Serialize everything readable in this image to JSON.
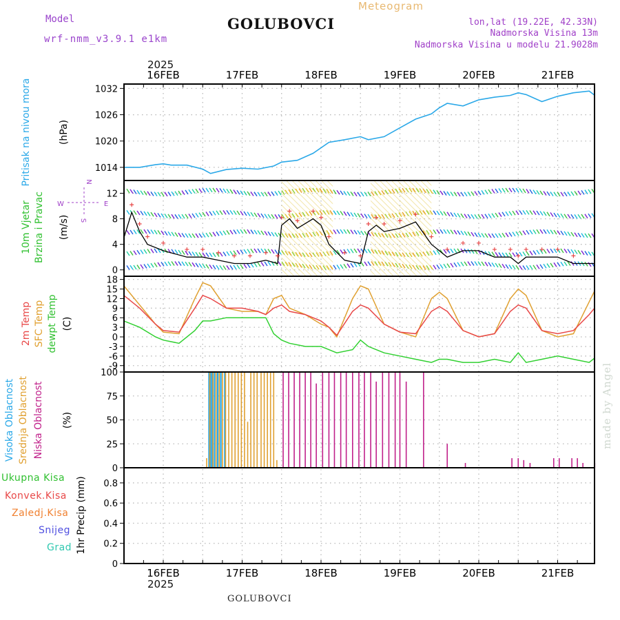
{
  "header": {
    "model_label": "Model",
    "model_name": "wrf-nmm_v3.9.1 e1km",
    "station": "GOLUBOVCI",
    "product": "Meteogram",
    "coords": "lon,lat (19.22E, 42.33N)",
    "elevation": "Nadmorska Visina 13m",
    "model_elevation": "Nadmorska Visina u modelu 21.9028m",
    "year_top": "2025",
    "year_bottom": "2025",
    "footer_station": "GOLUBOVCI",
    "watermark": "made by Angel"
  },
  "colors": {
    "pressure": "#2aa8e8",
    "temp2m": "#e84848",
    "sfc_temp": "#e0a030",
    "dewpt": "#30d030",
    "high_cloud": "#2aa8e8",
    "mid_cloud": "#e0a030",
    "low_cloud": "#c0208a",
    "wind_speed": "#000000",
    "gust": "#e84848",
    "total_precip": "#30c030",
    "conv_precip": "#e84848",
    "frozen_precip": "#f08030",
    "snow": "#5050e0",
    "hail": "#30c8b0"
  },
  "date_ticks": [
    "16FEB",
    "17FEB",
    "18FEB",
    "19FEB",
    "20FEB",
    "21FEB"
  ],
  "panels": {
    "pressure": {
      "label_blue": "Pritisak na nivou mora",
      "unit": "(hPa)",
      "yticks": [
        "1014",
        "1020",
        "1026",
        "1032"
      ]
    },
    "wind": {
      "label_green1": "10m Vjetar",
      "label_green2": "Brzina i Pravac",
      "unit": "(m/s)",
      "yticks": [
        "0",
        "4",
        "8",
        "12"
      ],
      "compass_n": "N",
      "compass_s": "S",
      "compass_e": "E",
      "compass_w": "W"
    },
    "temp": {
      "label_red": "2m Temp",
      "label_orange": "SFC Temp",
      "label_green": "dewpt Temp",
      "unit": "(C)",
      "yticks": [
        "-9",
        "-6",
        "-3",
        "0",
        "3",
        "6",
        "9",
        "12",
        "15",
        "18"
      ]
    },
    "cloud": {
      "label_blue": "Visoka Oblacnost",
      "label_orange": "Srednja Oblacnost",
      "label_magenta": "Niska Oblacnost",
      "unit": "(%)",
      "yticks": [
        "0",
        "25",
        "50",
        "75",
        "100"
      ]
    },
    "precip": {
      "unit": "1hr Precip (mm)",
      "yticks": [
        "0",
        "0.2",
        "0.4",
        "0.6",
        "0.8"
      ],
      "legend": [
        "Ukupna Kisa",
        "Konvek.Kisa",
        "Zaledj.Kisa",
        "Snijeg",
        "Grad"
      ]
    }
  },
  "chart_data": [
    {
      "type": "line",
      "name": "pressure",
      "x_unit": "days since 16FEB 00UTC",
      "ylim": [
        1011,
        1033
      ],
      "x": [
        -0.5,
        -0.3,
        -0.1,
        0.0,
        0.1,
        0.3,
        0.5,
        0.6,
        0.8,
        1.0,
        1.2,
        1.4,
        1.5,
        1.7,
        1.9,
        2.1,
        2.3,
        2.5,
        2.6,
        2.8,
        3.0,
        3.2,
        3.4,
        3.5,
        3.6,
        3.8,
        4.0,
        4.2,
        4.4,
        4.5,
        4.6,
        4.8,
        5.0,
        5.2,
        5.4,
        5.5
      ],
      "series": [
        {
          "values": [
            1014.0,
            1014.0,
            1014.6,
            1014.8,
            1014.5,
            1014.5,
            1013.6,
            1012.6,
            1013.5,
            1013.8,
            1013.6,
            1014.3,
            1015.2,
            1015.6,
            1017.2,
            1019.7,
            1020.3,
            1021.0,
            1020.3,
            1021.0,
            1023.0,
            1025.0,
            1026.2,
            1027.6,
            1028.6,
            1028.0,
            1029.4,
            1030.0,
            1030.4,
            1031.0,
            1030.6,
            1029.0,
            1030.2,
            1031.0,
            1031.4,
            1030.0
          ]
        }
      ]
    },
    {
      "type": "line",
      "name": "wind_speed",
      "ylim": [
        -1,
        14
      ],
      "x": [
        -0.5,
        -0.4,
        -0.3,
        -0.2,
        0.0,
        0.3,
        0.5,
        0.7,
        0.9,
        1.1,
        1.3,
        1.45,
        1.5,
        1.6,
        1.7,
        1.9,
        2.0,
        2.1,
        2.3,
        2.5,
        2.6,
        2.7,
        2.8,
        3.0,
        3.2,
        3.4,
        3.6,
        3.8,
        4.0,
        4.2,
        4.4,
        4.5,
        4.6,
        4.8,
        5.0,
        5.2,
        5.5
      ],
      "series": [
        {
          "name": "wind",
          "values": [
            5,
            9,
            6,
            4,
            3,
            2,
            2,
            1.5,
            1,
            1,
            1.5,
            1,
            7,
            8,
            6.5,
            8,
            7,
            4,
            1.5,
            1,
            6,
            7,
            6,
            6.5,
            7.5,
            4,
            2,
            3,
            3,
            2,
            2,
            1,
            2,
            2,
            2,
            1,
            1
          ]
        }
      ]
    },
    {
      "type": "line",
      "name": "temperature",
      "ylim": [
        -11,
        19
      ],
      "x": [
        -0.5,
        -0.3,
        -0.1,
        0.0,
        0.2,
        0.4,
        0.5,
        0.6,
        0.8,
        1.0,
        1.2,
        1.3,
        1.4,
        1.5,
        1.6,
        1.8,
        2.0,
        2.1,
        2.2,
        2.4,
        2.5,
        2.6,
        2.8,
        3.0,
        3.2,
        3.4,
        3.5,
        3.6,
        3.8,
        4.0,
        4.2,
        4.4,
        4.5,
        4.6,
        4.8,
        5.0,
        5.2,
        5.4,
        5.5
      ],
      "series": [
        {
          "values": [
            13,
            9,
            4,
            2,
            1.5,
            9,
            13,
            12,
            9,
            9,
            8,
            7,
            9,
            10,
            8,
            7,
            5,
            3,
            0.5,
            8,
            10,
            9,
            4,
            1.5,
            1,
            8,
            9.5,
            8,
            2,
            0,
            1,
            8,
            10,
            9,
            2,
            1,
            2,
            7,
            10
          ]
        },
        {
          "values": [
            16,
            10,
            4,
            1.5,
            1,
            12,
            17,
            16,
            9,
            8,
            8,
            7,
            12,
            13,
            9,
            7,
            4,
            3,
            0,
            12,
            16,
            15,
            4,
            1.5,
            0,
            12,
            14,
            12,
            2,
            0,
            1,
            12,
            15,
            13,
            2,
            0,
            1,
            11,
            16
          ]
        },
        {
          "values": [
            5,
            3,
            0,
            -1,
            -2,
            2,
            5,
            5,
            6,
            6,
            6,
            6,
            1,
            -1,
            -2,
            -3,
            -3,
            -4,
            -5,
            -4,
            -1,
            -3,
            -5,
            -6,
            -7,
            -8,
            -7,
            -7,
            -8,
            -8,
            -7,
            -8,
            -5,
            -8,
            -7,
            -6,
            -7,
            -8,
            -6
          ]
        }
      ]
    },
    {
      "type": "bar",
      "name": "cloud_cover",
      "ylim": [
        0,
        100
      ],
      "series": [
        {
          "name": "high",
          "x": [
            0.58,
            0.6,
            0.62,
            0.65,
            0.69,
            0.73,
            0.78
          ],
          "values": [
            100,
            100,
            100,
            100,
            100,
            100,
            100
          ]
        },
        {
          "name": "mid",
          "x": [
            0.55,
            0.59,
            0.63,
            0.67,
            0.71,
            0.75,
            0.79,
            0.83,
            0.87,
            0.91,
            0.95,
            0.99,
            1.03,
            1.07,
            1.11,
            1.15,
            1.19,
            1.24,
            1.28,
            1.32,
            1.36,
            1.4,
            1.44
          ],
          "values": [
            10,
            100,
            100,
            100,
            100,
            100,
            100,
            100,
            100,
            100,
            100,
            100,
            100,
            48,
            100,
            100,
            100,
            100,
            100,
            100,
            100,
            100,
            8
          ]
        },
        {
          "name": "low",
          "x": [
            1.0,
            1.12,
            1.2,
            1.28,
            1.36,
            1.44,
            1.52,
            1.59,
            1.66,
            1.73,
            1.8,
            1.87,
            1.94,
            2.02,
            2.1,
            2.17,
            2.25,
            2.32,
            2.4,
            2.48,
            2.55,
            2.63,
            2.7,
            2.78,
            2.86,
            2.94,
            3.0,
            3.08,
            3.15,
            3.22,
            3.3,
            3.38,
            3.45,
            3.52,
            3.6,
            3.68,
            3.75,
            3.83,
            3.9,
            3.98,
            4.05,
            4.12,
            4.2,
            4.28,
            4.35,
            4.42,
            4.5,
            4.57,
            4.65,
            4.72,
            4.8,
            4.88,
            4.95,
            5.02,
            5.1,
            5.18,
            5.25,
            5.32,
            5.4,
            5.47
          ],
          "values": [
            0,
            0,
            0,
            0,
            0,
            0,
            100,
            100,
            100,
            100,
            100,
            100,
            88,
            100,
            100,
            100,
            100,
            100,
            100,
            100,
            100,
            100,
            90,
            100,
            100,
            100,
            100,
            90,
            0,
            0,
            100,
            0,
            0,
            0,
            25,
            0,
            0,
            5,
            0,
            0,
            0,
            0,
            0,
            0,
            0,
            10,
            10,
            8,
            5,
            0,
            0,
            0,
            10,
            10,
            0,
            10,
            10,
            5,
            0,
            5
          ]
        }
      ]
    },
    {
      "type": "bar",
      "name": "precip_1hr",
      "ylim": [
        0,
        0.95
      ],
      "series": [
        {
          "name": "Ukupna Kisa",
          "values": []
        },
        {
          "name": "Konvek.Kisa",
          "values": []
        },
        {
          "name": "Zaledj.Kisa",
          "values": []
        },
        {
          "name": "Snijeg",
          "values": []
        },
        {
          "name": "Grad",
          "values": []
        }
      ]
    }
  ]
}
